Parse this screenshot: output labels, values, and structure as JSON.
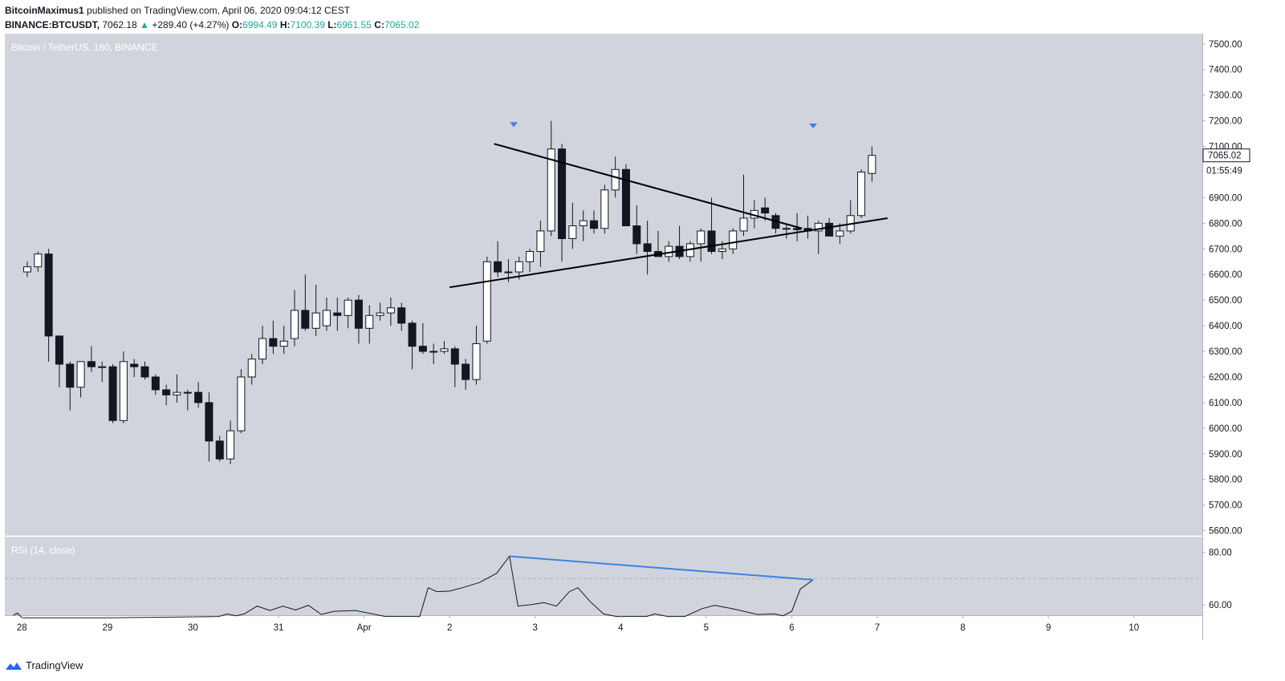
{
  "header": {
    "author": "BitcoinMaximus1",
    "published_text": "published on TradingView.com, April 06, 2020 09:04:12 CEST",
    "symbol": "BINANCE:BTCUSDT,",
    "last": "7062.18",
    "change": "+289.40 (+4.27%)",
    "o_label": "O:",
    "o_value": "6994.49",
    "h_label": "H:",
    "h_value": "7100.39",
    "l_label": "L:",
    "l_value": "6961.55",
    "c_label": "C:",
    "c_value": "7065.02"
  },
  "main_pane": {
    "legend": "Bitcoin / TetherUS, 180, BINANCE",
    "price_tag": "7065.02",
    "countdown": "01:55:49"
  },
  "rsi_pane": {
    "legend": "RSI (14, close)"
  },
  "footer": {
    "brand": "TradingView"
  },
  "colors": {
    "background": "#d1d4dc",
    "bull": "#ffffff",
    "bear": "#131722",
    "arrow": "#3d82e0",
    "divergence_line": "#3d82e0",
    "trendline": "#000000"
  },
  "chart_data": [
    {
      "type": "candlestick",
      "title": "Bitcoin / TetherUS, 180, BINANCE",
      "ylim": [
        5580,
        7540
      ],
      "y_ticks": [
        5600,
        5700,
        5800,
        5900,
        6000,
        6100,
        6200,
        6300,
        6400,
        6500,
        6600,
        6700,
        6800,
        6900,
        7000,
        7100,
        7200,
        7300,
        7400,
        7500
      ],
      "x_ticks": [
        {
          "label": "28",
          "day": 0
        },
        {
          "label": "29",
          "day": 1
        },
        {
          "label": "30",
          "day": 2
        },
        {
          "label": "31",
          "day": 3
        },
        {
          "label": "Apr",
          "day": 4
        },
        {
          "label": "2",
          "day": 5
        },
        {
          "label": "3",
          "day": 6
        },
        {
          "label": "4",
          "day": 7
        },
        {
          "label": "5",
          "day": 8
        },
        {
          "label": "6",
          "day": 9
        },
        {
          "label": "7",
          "day": 10
        },
        {
          "label": "8",
          "day": 11
        },
        {
          "label": "9",
          "day": 12
        },
        {
          "label": "10",
          "day": 13
        }
      ],
      "xlim_days": [
        -0.2,
        13.8
      ],
      "candles": [
        {
          "o": 6610,
          "h": 6650,
          "l": 6590,
          "c": 6630
        },
        {
          "o": 6630,
          "h": 6690,
          "l": 6610,
          "c": 6680
        },
        {
          "o": 6680,
          "h": 6700,
          "l": 6260,
          "c": 6360
        },
        {
          "o": 6360,
          "h": 6360,
          "l": 6160,
          "c": 6250
        },
        {
          "o": 6250,
          "h": 6260,
          "l": 6070,
          "c": 6160
        },
        {
          "o": 6160,
          "h": 6260,
          "l": 6120,
          "c": 6260
        },
        {
          "o": 6260,
          "h": 6320,
          "l": 6220,
          "c": 6240
        },
        {
          "o": 6240,
          "h": 6260,
          "l": 6180,
          "c": 6240
        },
        {
          "o": 6240,
          "h": 6250,
          "l": 6020,
          "c": 6030
        },
        {
          "o": 6030,
          "h": 6300,
          "l": 6020,
          "c": 6260
        },
        {
          "o": 6250,
          "h": 6270,
          "l": 6200,
          "c": 6240
        },
        {
          "o": 6240,
          "h": 6260,
          "l": 6190,
          "c": 6200
        },
        {
          "o": 6200,
          "h": 6210,
          "l": 6130,
          "c": 6150
        },
        {
          "o": 6150,
          "h": 6170,
          "l": 6090,
          "c": 6130
        },
        {
          "o": 6130,
          "h": 6210,
          "l": 6100,
          "c": 6140
        },
        {
          "o": 6140,
          "h": 6150,
          "l": 6070,
          "c": 6140
        },
        {
          "o": 6140,
          "h": 6180,
          "l": 6080,
          "c": 6100
        },
        {
          "o": 6100,
          "h": 6140,
          "l": 5870,
          "c": 5950
        },
        {
          "o": 5950,
          "h": 5970,
          "l": 5870,
          "c": 5880
        },
        {
          "o": 5880,
          "h": 6030,
          "l": 5860,
          "c": 5990
        },
        {
          "o": 5990,
          "h": 6230,
          "l": 5980,
          "c": 6200
        },
        {
          "o": 6200,
          "h": 6290,
          "l": 6170,
          "c": 6270
        },
        {
          "o": 6270,
          "h": 6400,
          "l": 6250,
          "c": 6350
        },
        {
          "o": 6350,
          "h": 6420,
          "l": 6290,
          "c": 6320
        },
        {
          "o": 6320,
          "h": 6400,
          "l": 6290,
          "c": 6340
        },
        {
          "o": 6350,
          "h": 6540,
          "l": 6320,
          "c": 6460
        },
        {
          "o": 6460,
          "h": 6600,
          "l": 6380,
          "c": 6390
        },
        {
          "o": 6390,
          "h": 6560,
          "l": 6360,
          "c": 6450
        },
        {
          "o": 6400,
          "h": 6510,
          "l": 6380,
          "c": 6460
        },
        {
          "o": 6450,
          "h": 6510,
          "l": 6380,
          "c": 6440
        },
        {
          "o": 6440,
          "h": 6510,
          "l": 6390,
          "c": 6500
        },
        {
          "o": 6500,
          "h": 6520,
          "l": 6330,
          "c": 6390
        },
        {
          "o": 6390,
          "h": 6480,
          "l": 6330,
          "c": 6440
        },
        {
          "o": 6440,
          "h": 6490,
          "l": 6420,
          "c": 6450
        },
        {
          "o": 6450,
          "h": 6510,
          "l": 6400,
          "c": 6470
        },
        {
          "o": 6470,
          "h": 6490,
          "l": 6380,
          "c": 6410
        },
        {
          "o": 6410,
          "h": 6420,
          "l": 6230,
          "c": 6320
        },
        {
          "o": 6320,
          "h": 6410,
          "l": 6290,
          "c": 6300
        },
        {
          "o": 6300,
          "h": 6330,
          "l": 6250,
          "c": 6300
        },
        {
          "o": 6300,
          "h": 6340,
          "l": 6290,
          "c": 6310
        },
        {
          "o": 6310,
          "h": 6320,
          "l": 6160,
          "c": 6250
        },
        {
          "o": 6250,
          "h": 6270,
          "l": 6150,
          "c": 6190
        },
        {
          "o": 6190,
          "h": 6400,
          "l": 6170,
          "c": 6330
        },
        {
          "o": 6340,
          "h": 6670,
          "l": 6330,
          "c": 6650
        },
        {
          "o": 6650,
          "h": 6730,
          "l": 6590,
          "c": 6610
        },
        {
          "o": 6610,
          "h": 6660,
          "l": 6570,
          "c": 6610
        },
        {
          "o": 6610,
          "h": 6670,
          "l": 6580,
          "c": 6650
        },
        {
          "o": 6650,
          "h": 6700,
          "l": 6610,
          "c": 6690
        },
        {
          "o": 6690,
          "h": 6810,
          "l": 6630,
          "c": 6770
        },
        {
          "o": 6770,
          "h": 7200,
          "l": 6750,
          "c": 7090
        },
        {
          "o": 7090,
          "h": 7110,
          "l": 6650,
          "c": 6740
        },
        {
          "o": 6740,
          "h": 6880,
          "l": 6700,
          "c": 6790
        },
        {
          "o": 6790,
          "h": 6850,
          "l": 6730,
          "c": 6810
        },
        {
          "o": 6810,
          "h": 6850,
          "l": 6760,
          "c": 6780
        },
        {
          "o": 6780,
          "h": 6950,
          "l": 6760,
          "c": 6930
        },
        {
          "o": 6930,
          "h": 7060,
          "l": 6900,
          "c": 7010
        },
        {
          "o": 7010,
          "h": 7030,
          "l": 6790,
          "c": 6790
        },
        {
          "o": 6790,
          "h": 6870,
          "l": 6680,
          "c": 6720
        },
        {
          "o": 6720,
          "h": 6810,
          "l": 6600,
          "c": 6690
        },
        {
          "o": 6690,
          "h": 6770,
          "l": 6670,
          "c": 6670
        },
        {
          "o": 6670,
          "h": 6730,
          "l": 6650,
          "c": 6710
        },
        {
          "o": 6710,
          "h": 6790,
          "l": 6660,
          "c": 6670
        },
        {
          "o": 6670,
          "h": 6730,
          "l": 6650,
          "c": 6720
        },
        {
          "o": 6720,
          "h": 6780,
          "l": 6650,
          "c": 6770
        },
        {
          "o": 6770,
          "h": 6900,
          "l": 6680,
          "c": 6690
        },
        {
          "o": 6690,
          "h": 6730,
          "l": 6660,
          "c": 6700
        },
        {
          "o": 6700,
          "h": 6780,
          "l": 6680,
          "c": 6770
        },
        {
          "o": 6770,
          "h": 6990,
          "l": 6750,
          "c": 6820
        },
        {
          "o": 6820,
          "h": 6890,
          "l": 6780,
          "c": 6850
        },
        {
          "o": 6860,
          "h": 6900,
          "l": 6810,
          "c": 6840
        },
        {
          "o": 6830,
          "h": 6840,
          "l": 6760,
          "c": 6780
        },
        {
          "o": 6780,
          "h": 6800,
          "l": 6740,
          "c": 6780
        },
        {
          "o": 6780,
          "h": 6840,
          "l": 6730,
          "c": 6775
        },
        {
          "o": 6780,
          "h": 6830,
          "l": 6740,
          "c": 6770
        },
        {
          "o": 6770,
          "h": 6810,
          "l": 6680,
          "c": 6800
        },
        {
          "o": 6800,
          "h": 6820,
          "l": 6750,
          "c": 6750
        },
        {
          "o": 6750,
          "h": 6800,
          "l": 6720,
          "c": 6770
        },
        {
          "o": 6770,
          "h": 6890,
          "l": 6760,
          "c": 6830
        },
        {
          "o": 6830,
          "h": 7010,
          "l": 6820,
          "c": 7000
        },
        {
          "o": 6994.49,
          "h": 7100.39,
          "l": 6961.55,
          "c": 7065.02
        }
      ],
      "trendlines": [
        {
          "name": "descending-resistance",
          "day1": 5.52,
          "price1": 7110,
          "day2": 9.12,
          "price2": 6780
        },
        {
          "name": "ascending-support",
          "day1": 5.0,
          "price1": 6550,
          "day2": 10.12,
          "price2": 6820
        }
      ],
      "arrows": [
        {
          "day": 5.75,
          "price": 7185
        },
        {
          "day": 9.25,
          "price": 7180
        }
      ],
      "last_price": 7065.02
    },
    {
      "type": "line",
      "title": "RSI (14, close)",
      "ylim": [
        56,
        86
      ],
      "y_ticks": [
        60,
        80
      ],
      "dashed_level": 70,
      "series": [
        {
          "values": [
            {
              "day": -0.1,
              "v": 56
            },
            {
              "day": -0.05,
              "v": 56.8
            },
            {
              "day": 0.0,
              "v": 55
            },
            {
              "day": 1.0,
              "v": 55
            },
            {
              "day": 2.3,
              "v": 55.5
            },
            {
              "day": 2.4,
              "v": 56.5
            },
            {
              "day": 2.5,
              "v": 55.8
            },
            {
              "day": 2.6,
              "v": 56.5
            },
            {
              "day": 2.75,
              "v": 59.5
            },
            {
              "day": 2.9,
              "v": 57.8
            },
            {
              "day": 3.05,
              "v": 59.5
            },
            {
              "day": 3.2,
              "v": 58
            },
            {
              "day": 3.35,
              "v": 59.8
            },
            {
              "day": 3.5,
              "v": 56.3
            },
            {
              "day": 3.65,
              "v": 57.5
            },
            {
              "day": 3.9,
              "v": 57.8
            },
            {
              "day": 4.1,
              "v": 56.5
            },
            {
              "day": 4.25,
              "v": 55.5
            },
            {
              "day": 4.65,
              "v": 55.5
            },
            {
              "day": 4.75,
              "v": 66.5
            },
            {
              "day": 4.85,
              "v": 65
            },
            {
              "day": 5.0,
              "v": 65.2
            },
            {
              "day": 5.15,
              "v": 66.5
            },
            {
              "day": 5.35,
              "v": 68.5
            },
            {
              "day": 5.55,
              "v": 72
            },
            {
              "day": 5.7,
              "v": 78.5
            },
            {
              "day": 5.8,
              "v": 59.5
            },
            {
              "day": 5.95,
              "v": 60
            },
            {
              "day": 6.1,
              "v": 60.8
            },
            {
              "day": 6.25,
              "v": 59.5
            },
            {
              "day": 6.4,
              "v": 65
            },
            {
              "day": 6.5,
              "v": 66.5
            },
            {
              "day": 6.65,
              "v": 61
            },
            {
              "day": 6.8,
              "v": 56.5
            },
            {
              "day": 6.95,
              "v": 55.5
            },
            {
              "day": 7.3,
              "v": 55.5
            },
            {
              "day": 7.4,
              "v": 56.5
            },
            {
              "day": 7.55,
              "v": 55.5
            },
            {
              "day": 7.75,
              "v": 55.5
            },
            {
              "day": 7.95,
              "v": 58.5
            },
            {
              "day": 8.1,
              "v": 59.8
            },
            {
              "day": 8.3,
              "v": 58.5
            },
            {
              "day": 8.6,
              "v": 56.3
            },
            {
              "day": 8.8,
              "v": 56.5
            },
            {
              "day": 8.9,
              "v": 55.8
            },
            {
              "day": 9.0,
              "v": 57.5
            },
            {
              "day": 9.1,
              "v": 66
            },
            {
              "day": 9.25,
              "v": 69.5
            }
          ]
        }
      ],
      "divergence_line": {
        "day1": 5.7,
        "v1": 78.5,
        "day2": 9.25,
        "v2": 69.5
      }
    }
  ]
}
